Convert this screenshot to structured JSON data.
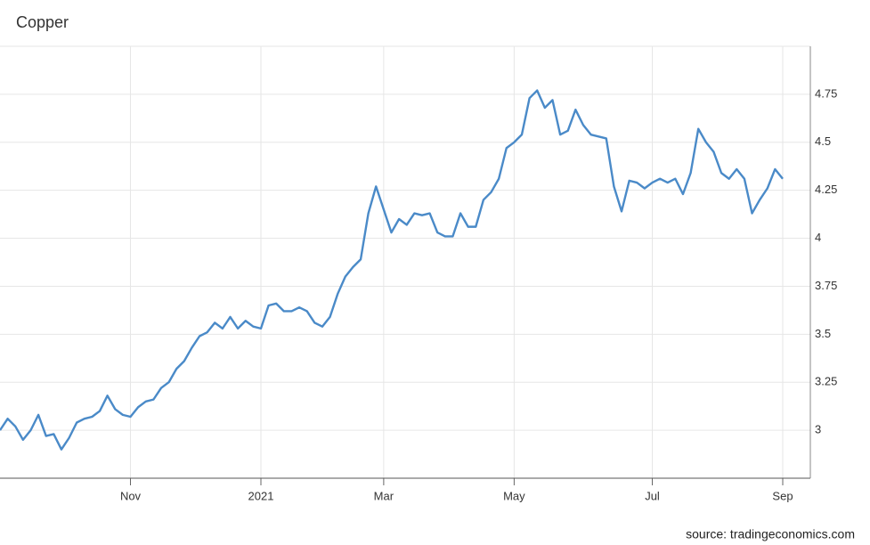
{
  "chart_data": {
    "type": "line",
    "title": "Copper",
    "source": "source: tradingeconomics.com",
    "categories": [
      null,
      null,
      null,
      null,
      null,
      null,
      null,
      null,
      null,
      null,
      null,
      null,
      null,
      null,
      null,
      null,
      null,
      "Nov",
      null,
      null,
      null,
      null,
      null,
      null,
      null,
      null,
      null,
      null,
      null,
      null,
      null,
      null,
      null,
      null,
      "2021",
      null,
      null,
      null,
      null,
      null,
      null,
      null,
      null,
      null,
      null,
      null,
      null,
      null,
      null,
      null,
      "Mar",
      null,
      null,
      null,
      null,
      null,
      null,
      null,
      null,
      null,
      null,
      null,
      null,
      null,
      null,
      null,
      null,
      "May",
      null,
      null,
      null,
      null,
      null,
      null,
      null,
      null,
      null,
      null,
      null,
      null,
      null,
      null,
      null,
      null,
      null,
      "Jul",
      null,
      null,
      null,
      null,
      null,
      null,
      null,
      null,
      null,
      null,
      null,
      null,
      null,
      null,
      null,
      null,
      "Sep"
    ],
    "series": [
      {
        "name": "Copper",
        "color": "#4a8ac8",
        "values": [
          3.0,
          3.06,
          3.02,
          2.95,
          3.0,
          3.08,
          2.97,
          2.98,
          2.9,
          2.96,
          3.04,
          3.06,
          3.07,
          3.1,
          3.18,
          3.11,
          3.08,
          3.07,
          3.12,
          3.15,
          3.16,
          3.22,
          3.25,
          3.32,
          3.36,
          3.43,
          3.49,
          3.51,
          3.56,
          3.53,
          3.59,
          3.53,
          3.57,
          3.54,
          3.53,
          3.65,
          3.66,
          3.62,
          3.62,
          3.64,
          3.62,
          3.56,
          3.54,
          3.59,
          3.71,
          3.8,
          3.85,
          3.89,
          4.13,
          4.27,
          4.15,
          4.03,
          4.1,
          4.07,
          4.13,
          4.12,
          4.13,
          4.03,
          4.01,
          4.01,
          4.13,
          4.06,
          4.06,
          4.2,
          4.24,
          4.31,
          4.47,
          4.5,
          4.54,
          4.73,
          4.77,
          4.68,
          4.72,
          4.54,
          4.56,
          4.67,
          4.59,
          4.54,
          4.53,
          4.52,
          4.27,
          4.14,
          4.3,
          4.29,
          4.26,
          4.29,
          4.31,
          4.29,
          4.31,
          4.23,
          4.34,
          4.57,
          4.5,
          4.45,
          4.34,
          4.31,
          4.36,
          4.31,
          4.13,
          4.2,
          4.26,
          4.36,
          4.31
        ]
      }
    ],
    "ylim": [
      2.75,
      5.0
    ],
    "yticks": [
      {
        "value": 3,
        "label": "3"
      },
      3.25,
      3.5,
      3.75,
      {
        "value": 4,
        "label": "4"
      },
      4.25,
      4.5,
      4.75
    ],
    "grid": true
  }
}
